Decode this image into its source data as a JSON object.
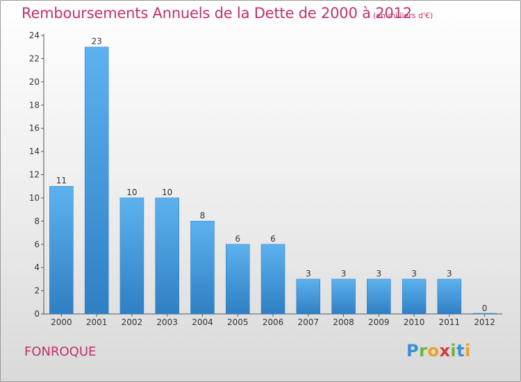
{
  "header": {
    "title": "Remboursements Annuels de la Dette de 2000 à 2012",
    "subtitle": "(en milliers d'€)"
  },
  "footer": {
    "commune": "FONROQUE",
    "logo": {
      "letters": [
        "P",
        "r",
        "o",
        "x",
        "i",
        "t",
        "i"
      ],
      "colors": [
        "#3b8fd8",
        "#6cb33f",
        "#f0a020",
        "#d23a3a",
        "#6cb33f",
        "#3b8fd8",
        "#f0a020"
      ]
    }
  },
  "colors": {
    "bar": "#3f9be0",
    "title": "#c0306a"
  },
  "chart_data": {
    "type": "bar",
    "categories": [
      "2000",
      "2001",
      "2002",
      "2003",
      "2004",
      "2005",
      "2006",
      "2007",
      "2008",
      "2009",
      "2010",
      "2011",
      "2012"
    ],
    "values": [
      11,
      23,
      10,
      10,
      8,
      6,
      6,
      3,
      3,
      3,
      3,
      3,
      0
    ],
    "data_labels": [
      "11",
      "23",
      "10",
      "10",
      "8",
      "6",
      "6",
      "3",
      "3",
      "3",
      "3",
      "3",
      "0"
    ],
    "ylim": [
      0,
      24
    ],
    "yticks": [
      0,
      2,
      4,
      6,
      8,
      10,
      12,
      14,
      16,
      18,
      20,
      22,
      24
    ],
    "grid": false,
    "title": "Remboursements Annuels de la Dette de 2000 à 2012",
    "subtitle": "(en milliers d'€)"
  }
}
